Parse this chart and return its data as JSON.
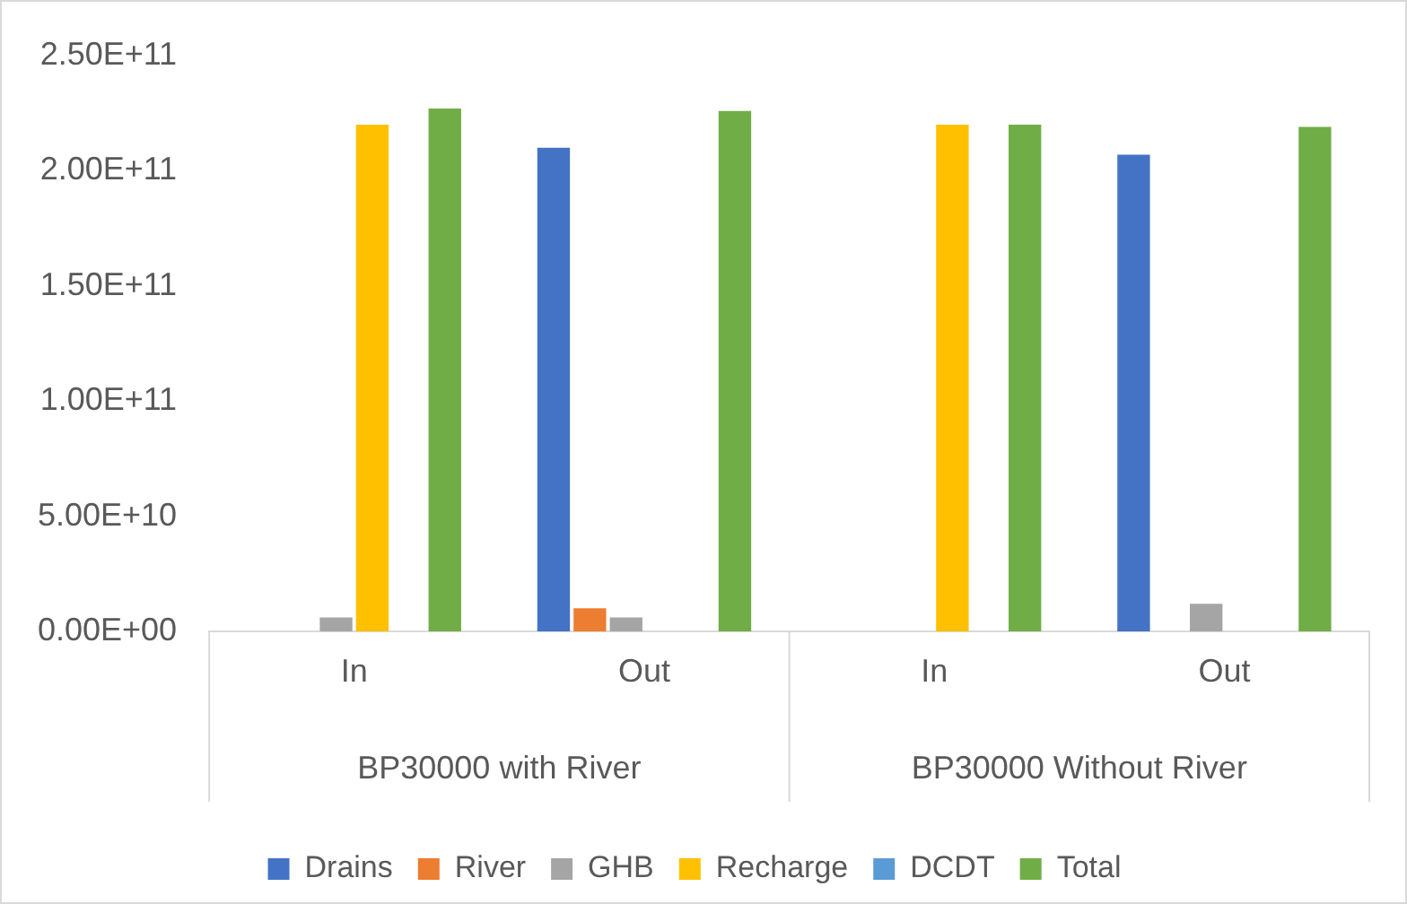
{
  "chart_data": {
    "type": "bar",
    "categories": [
      "In",
      "Out",
      "In",
      "Out"
    ],
    "series": [
      {
        "name": "Drains",
        "color": "#4472c4",
        "values": [
          0,
          210000000000.0,
          0,
          207000000000.0
        ]
      },
      {
        "name": "River",
        "color": "#ed7d31",
        "values": [
          0,
          10000000000.0,
          0,
          0
        ]
      },
      {
        "name": "GHB",
        "color": "#a5a5a5",
        "values": [
          6000000000.0,
          6000000000.0,
          0,
          12000000000.0
        ]
      },
      {
        "name": "Recharge",
        "color": "#ffc000",
        "values": [
          220000000000.0,
          0,
          220000000000.0,
          0
        ]
      },
      {
        "name": "DCDT",
        "color": "#5b9bd5",
        "values": [
          0,
          0,
          0,
          0
        ]
      },
      {
        "name": "Total",
        "color": "#70ad47",
        "values": [
          227000000000.0,
          226000000000.0,
          220000000000.0,
          219000000000.0
        ]
      }
    ],
    "ylim": [
      0,
      250000000000.0
    ],
    "yticks": [
      {
        "value": 0,
        "label": "0.00E+00"
      },
      {
        "value": 50000000000.0,
        "label": "5.00E+10"
      },
      {
        "value": 100000000000.0,
        "label": "1.00E+11"
      },
      {
        "value": 150000000000.0,
        "label": "1.50E+11"
      },
      {
        "value": 200000000000.0,
        "label": "2.00E+11"
      },
      {
        "value": 250000000000.0,
        "label": "2.50E+11"
      }
    ],
    "annotations": [
      "BP30000 with River",
      "BP30000 Without River"
    ],
    "legend": "bottom",
    "grid": false
  }
}
